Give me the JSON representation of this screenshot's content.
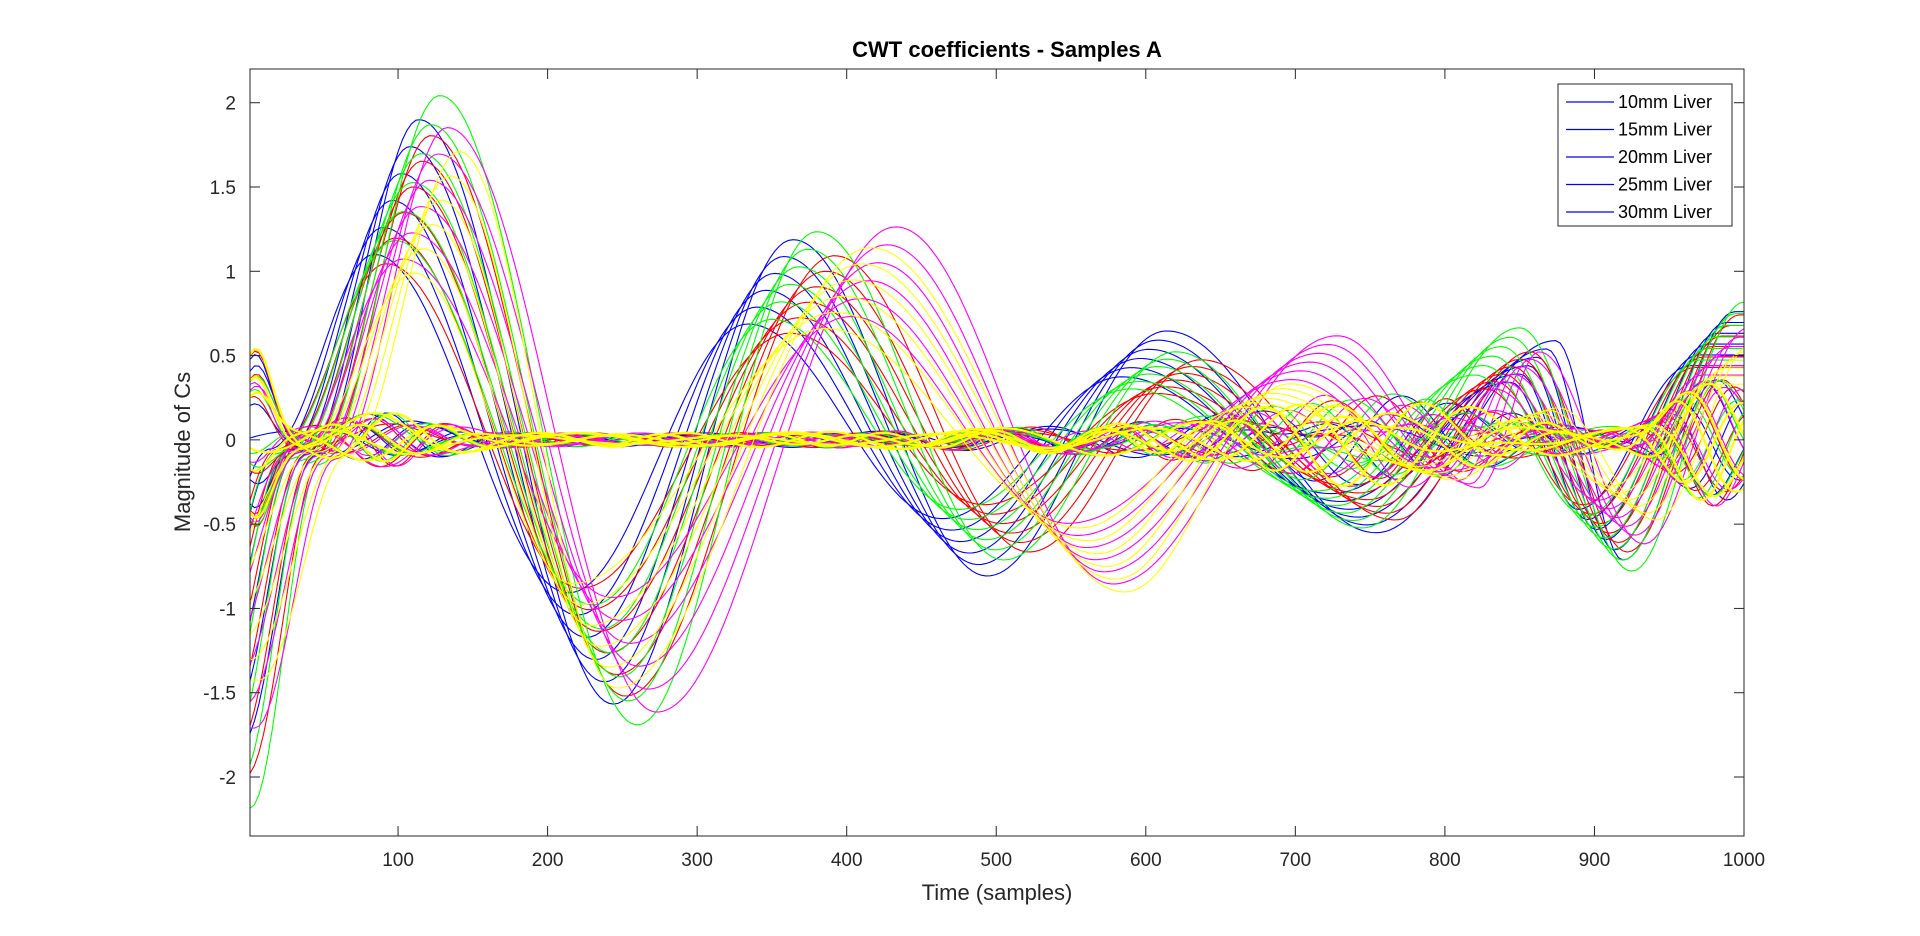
{
  "chart_data": {
    "type": "line",
    "title": "CWT coefficients - Samples A",
    "xlabel": "Time (samples)",
    "ylabel": "Magnitude of Cs",
    "xlim": [
      1,
      1000
    ],
    "ylim": [
      -2.35,
      2.2
    ],
    "xticks": [
      100,
      200,
      300,
      400,
      500,
      600,
      700,
      800,
      900,
      1000
    ],
    "xtick_labels": [
      "100",
      "200",
      "300",
      "400",
      "500",
      "600",
      "700",
      "800",
      "900",
      "1000"
    ],
    "yticks": [
      2,
      1.5,
      1,
      0.5,
      0,
      -0.5,
      -1,
      -1.5,
      -2
    ],
    "ytick_labels": [
      "2",
      "1.5",
      "1",
      "0.5",
      "0",
      "-0.5",
      "-1",
      "-1.5",
      "-2"
    ],
    "grid": false,
    "legend_position": "top-right",
    "legend": [
      {
        "label": "10mm Liver",
        "color": "#0000ff"
      },
      {
        "label": "15mm Liver",
        "color": "#0000ff"
      },
      {
        "label": "20mm Liver",
        "color": "#0000ff"
      },
      {
        "label": "25mm Liver",
        "color": "#0000ff"
      },
      {
        "label": "30mm Liver",
        "color": "#0000ff"
      }
    ],
    "series_colors": [
      "#0000ff",
      "#ff0000",
      "#00ff00",
      "#ff00ff",
      "#ffff00"
    ],
    "families": [
      {
        "color": "#0000ff",
        "count": 12,
        "points": [
          [
            1,
            -1.9
          ],
          [
            50,
            -0.1
          ],
          [
            120,
            2.0
          ],
          [
            250,
            -1.65
          ],
          [
            370,
            1.25
          ],
          [
            500,
            -0.85
          ],
          [
            620,
            0.68
          ],
          [
            760,
            -0.58
          ],
          [
            880,
            0.62
          ],
          [
            925,
            -0.75
          ],
          [
            1000,
            0.8
          ]
        ]
      },
      {
        "color": "#ff0000",
        "count": 12,
        "points": [
          [
            1,
            -2.1
          ],
          [
            52,
            -0.1
          ],
          [
            125,
            1.9
          ],
          [
            255,
            -1.6
          ],
          [
            395,
            1.15
          ],
          [
            525,
            -0.7
          ],
          [
            640,
            0.5
          ],
          [
            770,
            -0.5
          ],
          [
            860,
            0.55
          ],
          [
            925,
            -0.7
          ],
          [
            1000,
            0.78
          ]
        ]
      },
      {
        "color": "#00ff00",
        "count": 12,
        "points": [
          [
            1,
            -2.3
          ],
          [
            48,
            -0.15
          ],
          [
            128,
            2.15
          ],
          [
            260,
            -1.78
          ],
          [
            380,
            1.3
          ],
          [
            505,
            -0.75
          ],
          [
            620,
            0.55
          ],
          [
            745,
            -0.55
          ],
          [
            850,
            0.7
          ],
          [
            925,
            -0.82
          ],
          [
            1000,
            0.86
          ]
        ]
      },
      {
        "color": "#ff00ff",
        "count": 12,
        "points": [
          [
            1,
            -1.8
          ],
          [
            55,
            -0.12
          ],
          [
            130,
            1.95
          ],
          [
            270,
            -1.7
          ],
          [
            430,
            1.33
          ],
          [
            575,
            -0.9
          ],
          [
            725,
            0.65
          ],
          [
            820,
            -0.3
          ],
          [
            860,
            0.55
          ],
          [
            930,
            -0.65
          ],
          [
            1000,
            0.7
          ]
        ]
      },
      {
        "color": "#ffff00",
        "count": 12,
        "points": [
          [
            1,
            -1.5
          ],
          [
            60,
            -0.1
          ],
          [
            135,
            1.8
          ],
          [
            240,
            -1.55
          ],
          [
            410,
            1.2
          ],
          [
            580,
            -0.95
          ],
          [
            690,
            0.35
          ],
          [
            800,
            -0.25
          ],
          [
            870,
            0.2
          ],
          [
            935,
            -0.5
          ],
          [
            1000,
            0.6
          ]
        ]
      }
    ]
  }
}
